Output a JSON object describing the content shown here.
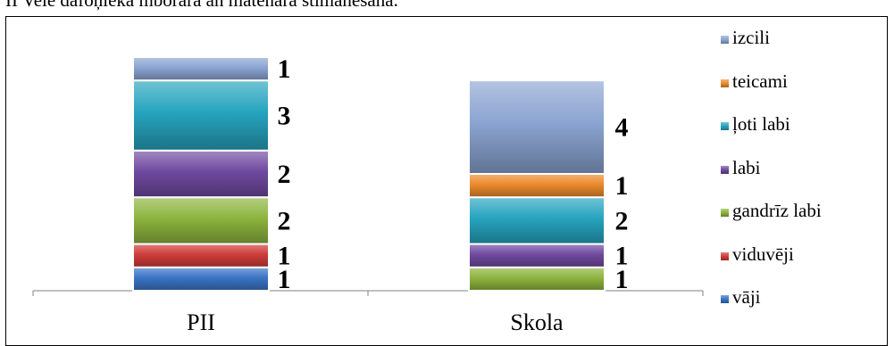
{
  "caption": "II Vele dafoņiekà mborara an matenàra stimanesana.",
  "chart_data": {
    "type": "bar",
    "stacked": true,
    "categories": [
      "PII",
      "Skola"
    ],
    "ylim": [
      0,
      10
    ],
    "grid": false,
    "legend_position": "right",
    "series": [
      {
        "name": "vāji",
        "color": "#3a74c4",
        "values": [
          1,
          0
        ]
      },
      {
        "name": "viduvēji",
        "color": "#cf3c3a",
        "values": [
          1,
          0
        ]
      },
      {
        "name": "gandrīz labi",
        "color": "#8db43e",
        "values": [
          2,
          1
        ]
      },
      {
        "name": "labi",
        "color": "#7049a0",
        "values": [
          2,
          1
        ]
      },
      {
        "name": "ļoti labi",
        "color": "#26a4bf",
        "values": [
          3,
          2
        ]
      },
      {
        "name": "teicami",
        "color": "#ec8a2c",
        "values": [
          0,
          1
        ]
      },
      {
        "name": "izcili",
        "color": "#8ba4d2",
        "values": [
          1,
          4
        ]
      }
    ],
    "data_labels": [
      [
        "1",
        "1",
        "2",
        "2",
        "3",
        "",
        "1"
      ],
      [
        "",
        "",
        "1",
        "1",
        "2",
        "1",
        "4"
      ]
    ]
  }
}
